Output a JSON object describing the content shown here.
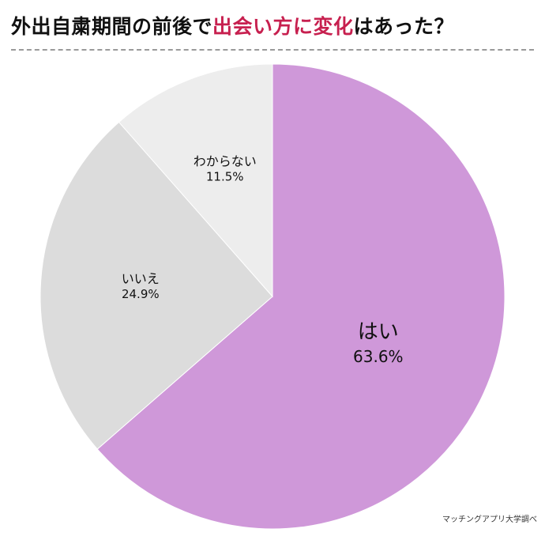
{
  "header": {
    "title_prefix": "外出自粛期間の前後で",
    "title_highlight": "出会い方に変化",
    "title_suffix": "はあった？"
  },
  "source": "マッチングアプリ大学調べ",
  "colors": {
    "highlight": "#c7204f",
    "divider": "#9a9a9a"
  },
  "chart_data": {
    "type": "pie",
    "start": "12 o'clock",
    "direction": "clockwise",
    "slices": [
      {
        "label": "はい",
        "value_text": "63.6%",
        "value": 63.6,
        "color": "#cf98d9"
      },
      {
        "label": "いいえ",
        "value_text": "24.9%",
        "value": 24.9,
        "color": "#dcdcdc"
      },
      {
        "label": "わからない",
        "value_text": "11.5%",
        "value": 11.5,
        "color": "#ededed"
      }
    ]
  }
}
